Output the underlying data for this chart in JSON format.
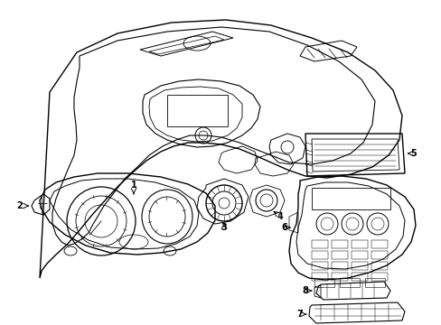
{
  "background": "#ffffff",
  "line_color": "#000000",
  "figsize": [
    4.89,
    3.6
  ],
  "dpi": 100,
  "xlim": [
    0,
    489
  ],
  "ylim": [
    0,
    360
  ]
}
